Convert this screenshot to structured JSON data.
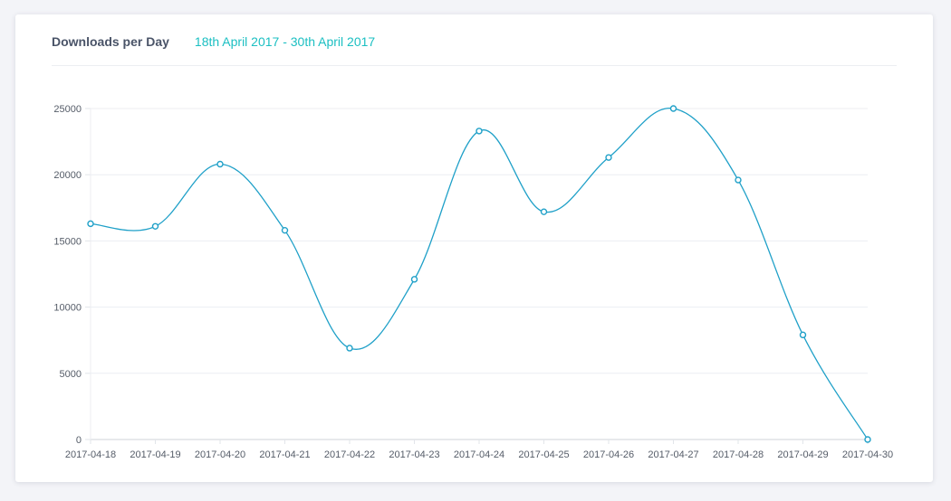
{
  "header": {
    "title": "Downloads per Day",
    "date_range": "18th April 2017 - 30th April 2017"
  },
  "colors": {
    "accent": "#1bbfc2",
    "line": "#1fa0c8"
  },
  "chart_data": {
    "type": "line",
    "title": "Downloads per Day",
    "categories": [
      "2017-04-18",
      "2017-04-19",
      "2017-04-20",
      "2017-04-21",
      "2017-04-22",
      "2017-04-23",
      "2017-04-24",
      "2017-04-25",
      "2017-04-26",
      "2017-04-27",
      "2017-04-28",
      "2017-04-29",
      "2017-04-30"
    ],
    "values": [
      16300,
      16100,
      20800,
      15800,
      6900,
      12100,
      23300,
      17200,
      21300,
      25000,
      19600,
      7900,
      0
    ],
    "yticks": [
      0,
      5000,
      10000,
      15000,
      20000,
      25000
    ],
    "ylim": [
      0,
      25000
    ],
    "grid": true,
    "legend": "none",
    "xlabel": "",
    "ylabel": ""
  }
}
